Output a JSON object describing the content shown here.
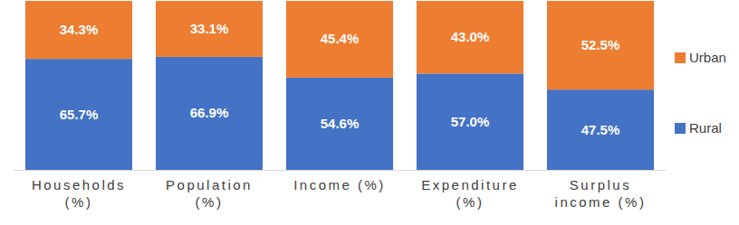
{
  "chart_data": {
    "type": "bar",
    "stacked": true,
    "data_labels": true,
    "legend": "right",
    "tick_labels": "x",
    "categories": [
      "Households (%)",
      "Population (%)",
      "Income (%)",
      "Expenditure (%)",
      "Surplus income (%)"
    ],
    "ylim": [
      0,
      100
    ],
    "series": [
      {
        "name": "Rural",
        "color": "#4472c4",
        "values": [
          65.7,
          66.9,
          54.6,
          57.0,
          47.5
        ],
        "value_labels": [
          "65.7%",
          "66.9%",
          "54.6%",
          "57.0%",
          "47.5%"
        ]
      },
      {
        "name": "Urban",
        "color": "#ed7d31",
        "values": [
          34.3,
          33.1,
          45.4,
          43.0,
          52.5
        ],
        "value_labels": [
          "34.3%",
          "33.1%",
          "45.4%",
          "43.0%",
          "52.5%"
        ]
      }
    ]
  }
}
